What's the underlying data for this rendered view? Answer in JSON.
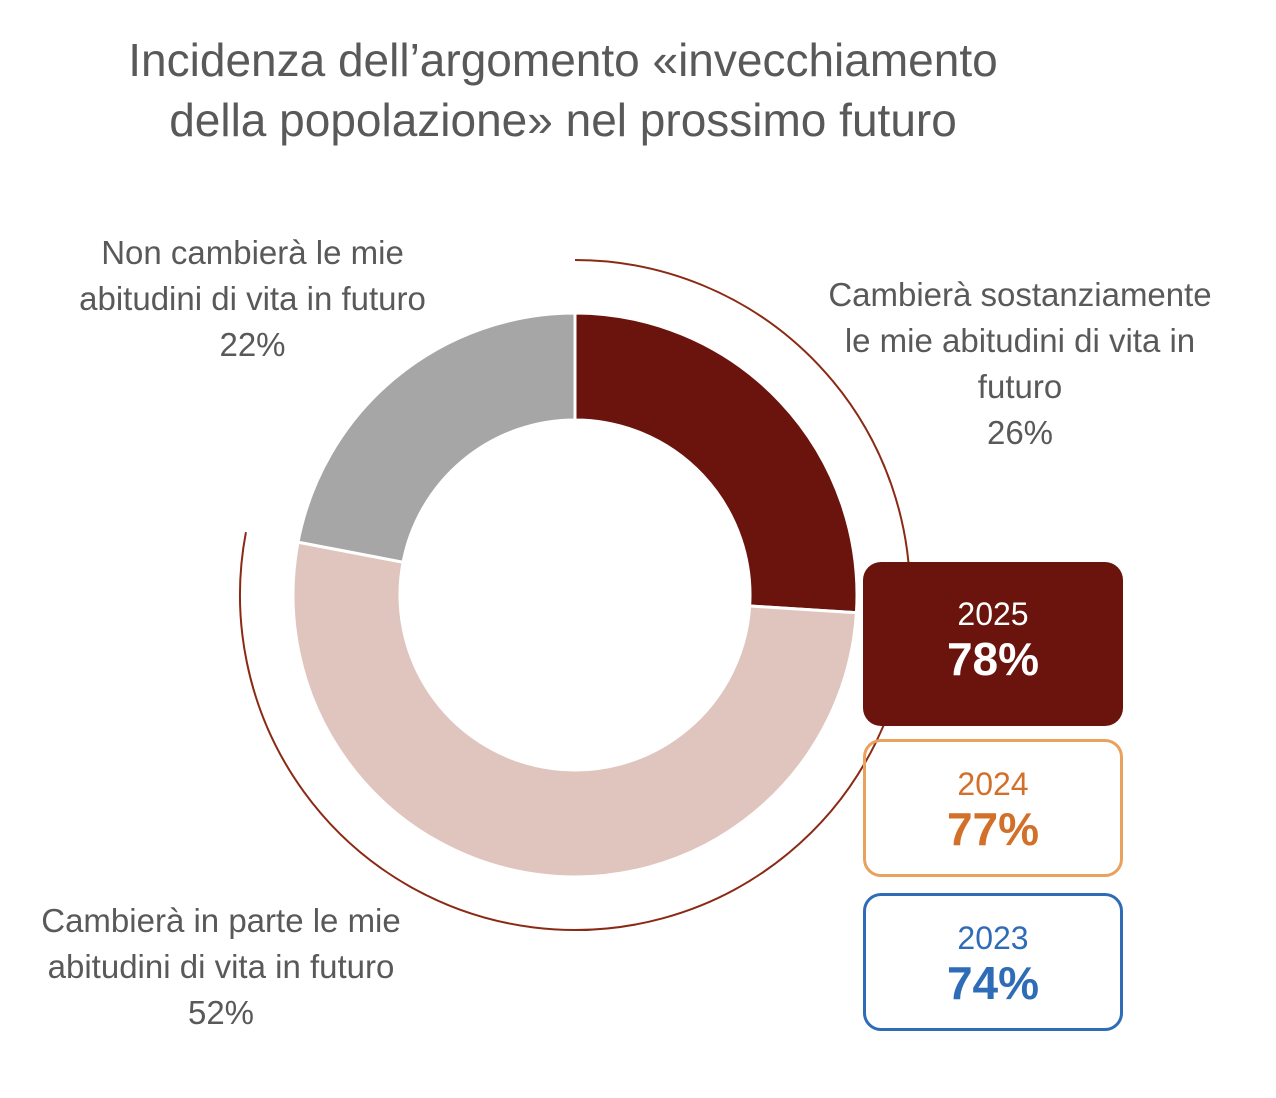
{
  "title_line1": "Incidenza dell’argomento «invecchiamento",
  "title_line2": "della popolazione» nel prossimo futuro",
  "chart_data": {
    "type": "pie",
    "subtype": "donut",
    "title": "Incidenza dell’argomento «invecchiamento della popolazione» nel prossimo futuro",
    "slices": [
      {
        "label_lines": [
          "Cambierà sostanziamente",
          "le mie abitudini di vita in",
          "futuro"
        ],
        "value": 26,
        "value_label": "26%",
        "color": "#6B140D"
      },
      {
        "label_lines": [
          "Cambierà in parte le mie",
          "abitudini di vita in futuro"
        ],
        "value": 52,
        "value_label": "52%",
        "color": "#E0C5BE"
      },
      {
        "label_lines": [
          "Non cambierà le mie",
          "abitudini di vita in futuro"
        ],
        "value": 22,
        "value_label": "22%",
        "color": "#A6A6A6"
      }
    ],
    "highlight_arc_value": 78,
    "highlight_arc_color": "#8B2A14",
    "yearly_totals": [
      {
        "year": "2025",
        "value": "78%",
        "style": "filled",
        "color": "#6B140D"
      },
      {
        "year": "2024",
        "value": "77%",
        "style": "outline",
        "color": "#D2702A",
        "border": "#E9A25E"
      },
      {
        "year": "2023",
        "value": "74%",
        "style": "outline",
        "color": "#2F6CB8",
        "border": "#2F6CB8"
      }
    ]
  }
}
